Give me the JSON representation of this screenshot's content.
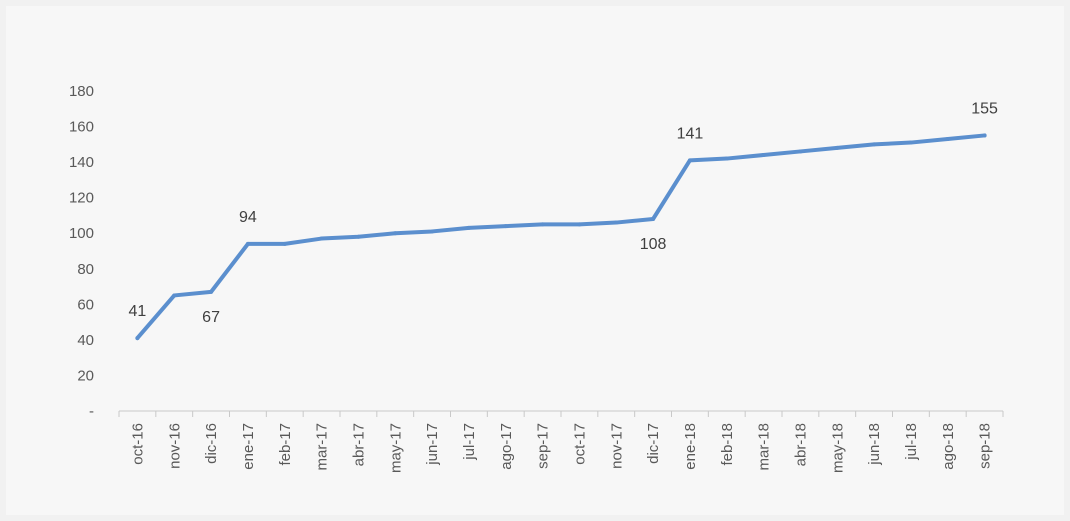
{
  "chart_data": {
    "type": "line",
    "title": "",
    "xlabel": "",
    "ylabel": "",
    "ylim": [
      0,
      180
    ],
    "y_ticks": [
      "-",
      "20",
      "40",
      "60",
      "80",
      "100",
      "120",
      "140",
      "160",
      "180"
    ],
    "grid": false,
    "line_color": "#5b8fce",
    "categories": [
      "oct-16",
      "nov-16",
      "dic-16",
      "ene-17",
      "feb-17",
      "mar-17",
      "abr-17",
      "may-17",
      "jun-17",
      "jul-17",
      "ago-17",
      "sep-17",
      "oct-17",
      "nov-17",
      "dic-17",
      "ene-18",
      "feb-18",
      "mar-18",
      "abr-18",
      "may-18",
      "jun-18",
      "jul-18",
      "ago-18",
      "sep-18"
    ],
    "series": [
      {
        "values": [
          41,
          65,
          67,
          94,
          94,
          97,
          98,
          100,
          101,
          103,
          104,
          105,
          105,
          106,
          108,
          141,
          142,
          144,
          146,
          148,
          150,
          151,
          153,
          155
        ]
      }
    ],
    "data_labels": [
      {
        "index": 0,
        "text": "41",
        "position": "above"
      },
      {
        "index": 2,
        "text": "67",
        "position": "below"
      },
      {
        "index": 3,
        "text": "94",
        "position": "above"
      },
      {
        "index": 14,
        "text": "108",
        "position": "below"
      },
      {
        "index": 15,
        "text": "141",
        "position": "above"
      },
      {
        "index": 23,
        "text": "155",
        "position": "above"
      }
    ]
  }
}
